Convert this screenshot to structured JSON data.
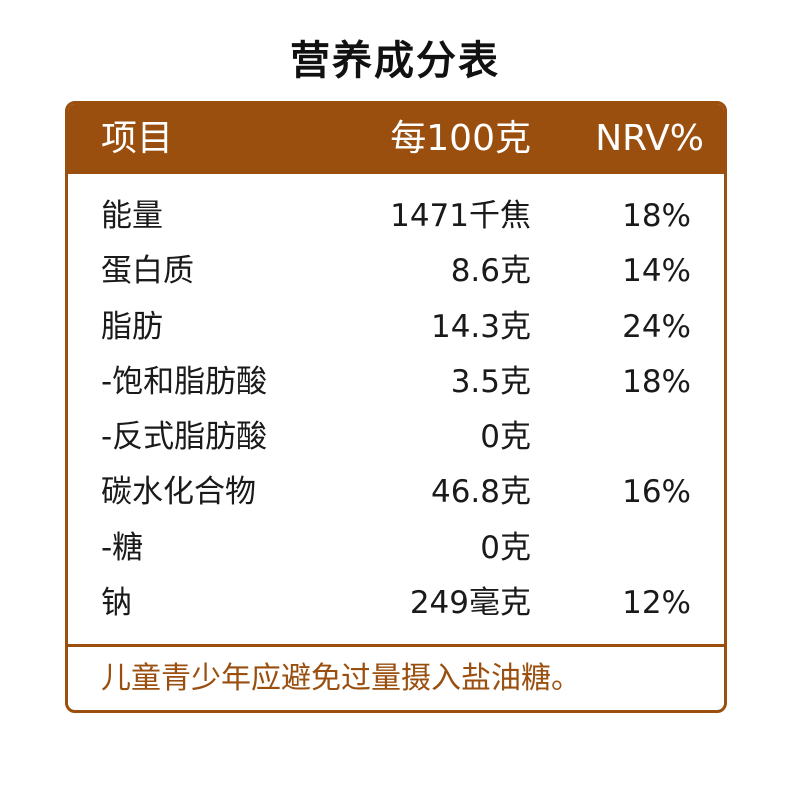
{
  "title": "营养成分表",
  "header": {
    "item": "项目",
    "amount": "每100克",
    "nrv": "NRV%"
  },
  "rows": [
    {
      "name": "能量",
      "amount": "1471千焦",
      "nrv": "18%"
    },
    {
      "name": "蛋白质",
      "amount": "8.6克",
      "nrv": "14%"
    },
    {
      "name": "脂肪",
      "amount": "14.3克",
      "nrv": "24%"
    },
    {
      "name": "-饱和脂肪酸",
      "amount": "3.5克",
      "nrv": "18%"
    },
    {
      "name": "-反式脂肪酸",
      "amount": "0克",
      "nrv": ""
    },
    {
      "name": "碳水化合物",
      "amount": "46.8克",
      "nrv": "16%"
    },
    {
      "name": "-糖",
      "amount": "0克",
      "nrv": ""
    },
    {
      "name": "钠",
      "amount": "249毫克",
      "nrv": "12%"
    }
  ],
  "note": "儿童青少年应避免过量摄入盐油糖。",
  "colors": {
    "accent": "#9a4f0f",
    "text": "#1a1a1a"
  }
}
